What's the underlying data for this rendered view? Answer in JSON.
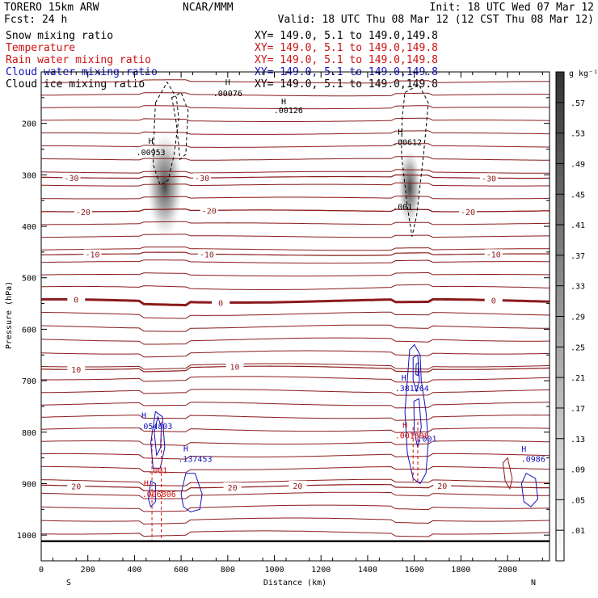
{
  "header": {
    "model": "TORERO  15km ARW",
    "center": "NCAR/MMM",
    "init": "Init: 18 UTC Wed 07 Mar 12",
    "fcst": "Fcst:   24 h",
    "valid": "Valid: 18 UTC Thu 08 Mar 12 (12 CST Thu 08 Mar 12)"
  },
  "legend": [
    {
      "name": "Snow mixing ratio",
      "color": "#000000",
      "xy": "XY= 149.0,   5.1 to 149.0,149.8"
    },
    {
      "name": "Temperature",
      "color": "#cc1111",
      "xy": "XY= 149.0,   5.1 to 149.0,149.8"
    },
    {
      "name": "Rain water mixing ratio",
      "color": "#cc1111",
      "xy": "XY= 149.0,   5.1 to 149.0,149.8"
    },
    {
      "name": "Cloud water mixing ratio",
      "color": "#1111bb",
      "xy": "XY= 149.0,   5.1 to 149.0,149.8"
    },
    {
      "name": "Cloud ice mixing ratio",
      "color": "#000000",
      "xy": "XY= 149.0,   5.1 to 149.0,149.8"
    }
  ],
  "colors": {
    "isotherm": "#8b1a1a",
    "zero_isotherm": "#8b1a1a",
    "rain": "#cc1111",
    "cloud_water": "#1111bb",
    "ice": "#000000"
  },
  "chart_data": {
    "type": "cross-section",
    "xlabel": "Distance (km)",
    "ylabel": "Pressure (hPa)",
    "xlim": [
      0,
      2180
    ],
    "ylim": [
      1050,
      100
    ],
    "x_ticks": [
      0,
      200,
      400,
      600,
      800,
      1000,
      1200,
      1400,
      1600,
      1800,
      2000
    ],
    "y_ticks": [
      200,
      300,
      400,
      500,
      600,
      700,
      800,
      900,
      1000
    ],
    "endpoints": {
      "left": "S",
      "right": "N"
    },
    "colorbar": {
      "units": "g kg⁻¹",
      "labels": [
        ".57",
        ".53",
        ".49",
        ".45",
        ".41",
        ".37",
        ".33",
        ".29",
        ".25",
        ".21",
        ".17",
        ".13",
        ".09",
        ".05",
        ".01"
      ]
    },
    "temperature_contours": [
      {
        "label": "-30",
        "p": 305,
        "label_x": [
          130,
          690,
          1920
        ]
      },
      {
        "label": "-20",
        "p": 370,
        "label_x": [
          180,
          720,
          1830
        ]
      },
      {
        "label": "-10",
        "p": 455,
        "label_x": [
          220,
          710,
          1940
        ]
      },
      {
        "label": "0",
        "p": 545,
        "zero": true,
        "label_x": [
          150,
          770,
          1940
        ]
      },
      {
        "label": "10",
        "p": 675,
        "label_x": [
          150,
          830
        ]
      },
      {
        "label": "20",
        "p": 905,
        "label_x": [
          150,
          820,
          1100,
          1720
        ]
      }
    ],
    "annotations": [
      {
        "text": "H",
        "x": 800,
        "p": 125,
        "kind": "ice"
      },
      {
        "text": ".00076",
        "x": 800,
        "p": 147,
        "kind": "ice"
      },
      {
        "text": ".00126",
        "x": 1060,
        "p": 180,
        "kind": "ice"
      },
      {
        "text": "H",
        "x": 1040,
        "p": 163,
        "kind": "ice"
      },
      {
        "text": "H",
        "x": 470,
        "p": 240,
        "kind": "ice"
      },
      {
        "text": ".00953",
        "x": 470,
        "p": 262,
        "kind": "ice"
      },
      {
        "text": "H",
        "x": 1540,
        "p": 222,
        "kind": "ice"
      },
      {
        "text": ".00612",
        "x": 1570,
        "p": 242,
        "kind": "ice"
      },
      {
        "text": ".001",
        "x": 1550,
        "p": 368,
        "kind": "ice"
      },
      {
        "text": "H",
        "x": 1555,
        "p": 700,
        "kind": "cloud"
      },
      {
        "text": ".381264",
        "x": 1590,
        "p": 720,
        "kind": "cloud"
      },
      {
        "text": ".001",
        "x": 1655,
        "p": 818,
        "kind": "cloud"
      },
      {
        "text": "H",
        "x": 440,
        "p": 773,
        "kind": "cloud"
      },
      {
        "text": ".054803",
        "x": 490,
        "p": 794,
        "kind": "cloud"
      },
      {
        "text": "H",
        "x": 620,
        "p": 837,
        "kind": "cloud"
      },
      {
        "text": ".137453",
        "x": 660,
        "p": 858,
        "kind": "cloud"
      },
      {
        "text": "H",
        "x": 2070,
        "p": 838,
        "kind": "cloud"
      },
      {
        "text": ".0986",
        "x": 2110,
        "p": 858,
        "kind": "cloud"
      },
      {
        "text": "H",
        "x": 1560,
        "p": 792,
        "kind": "rain"
      },
      {
        "text": ".001698",
        "x": 1590,
        "p": 812,
        "kind": "rain"
      },
      {
        "text": ".001",
        "x": 500,
        "p": 880,
        "kind": "rain"
      },
      {
        "text": "H",
        "x": 450,
        "p": 905,
        "kind": "rain"
      },
      {
        "text": ".006806",
        "x": 505,
        "p": 926,
        "kind": "rain"
      }
    ]
  }
}
